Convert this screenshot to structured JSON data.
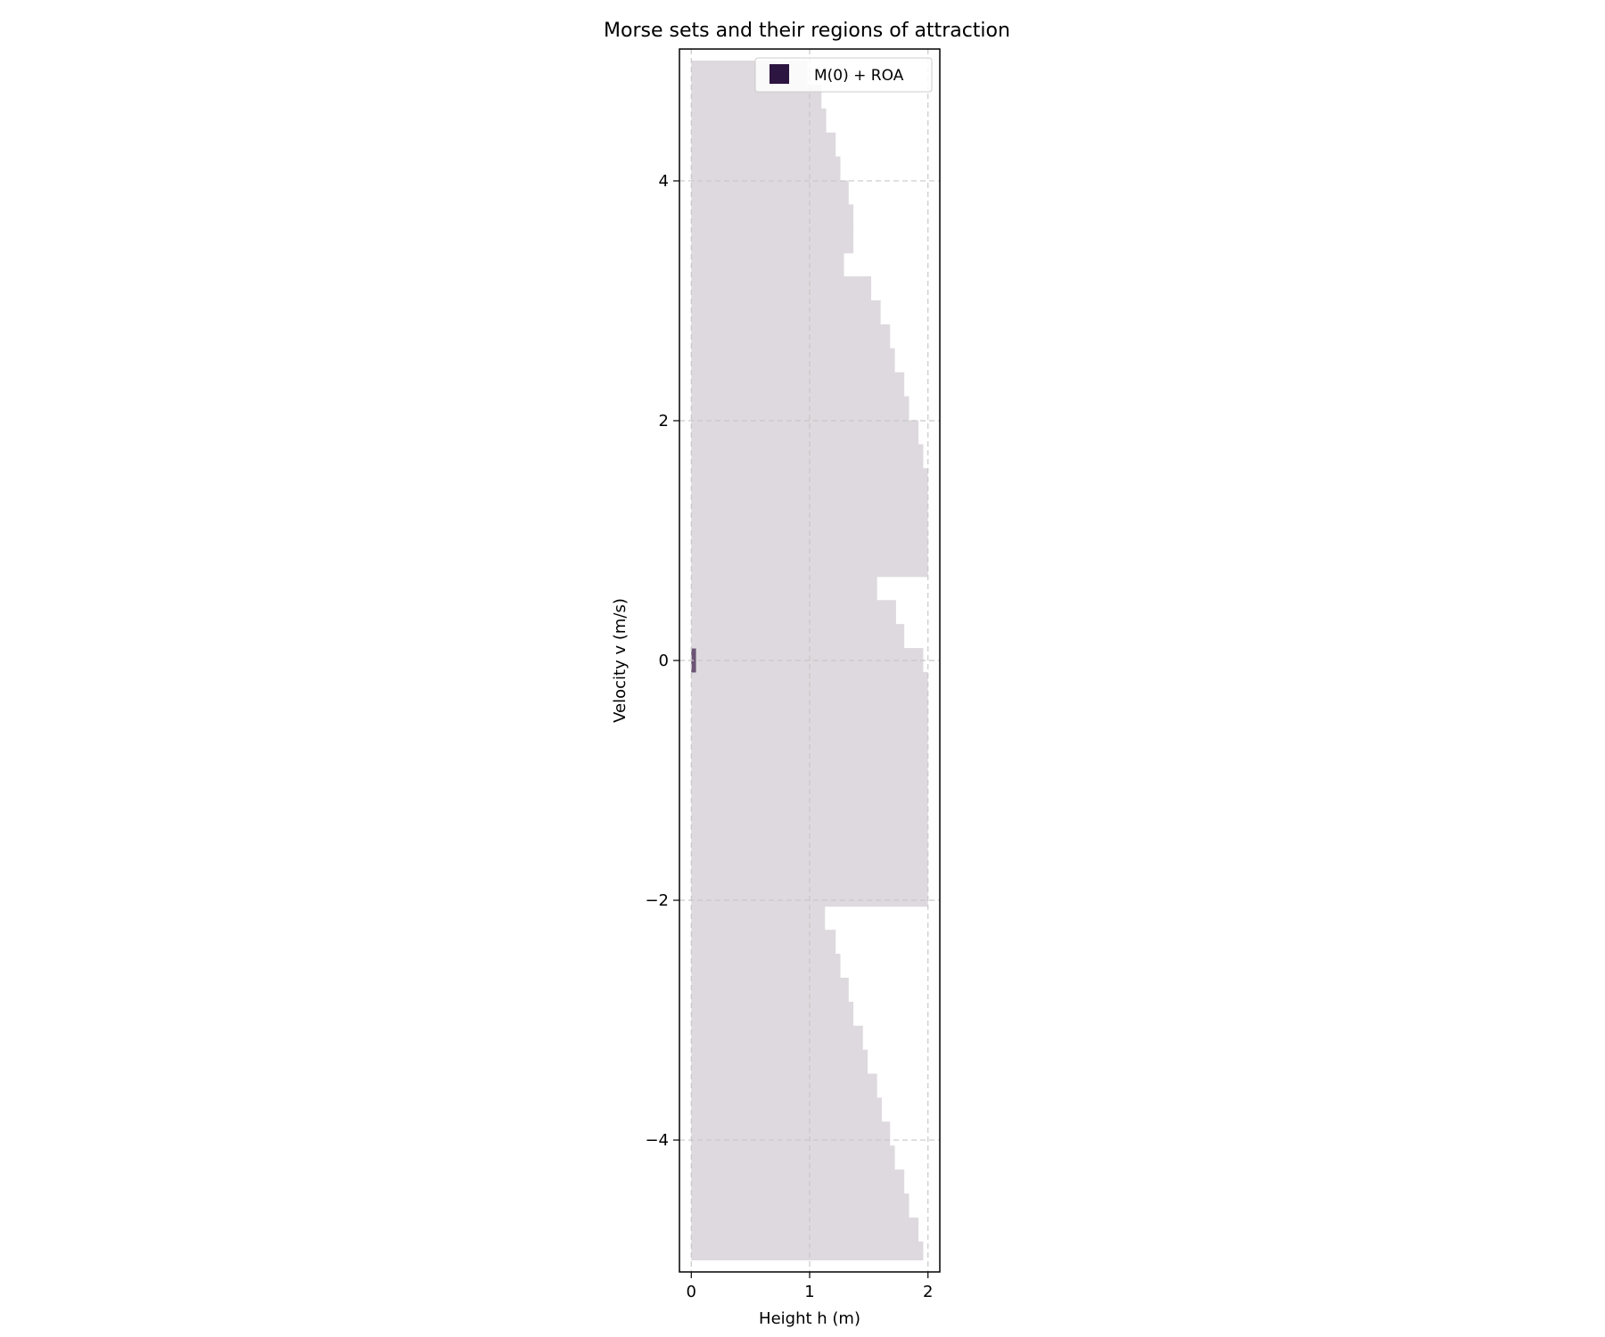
{
  "chart_data": {
    "type": "heatmap",
    "title": "Morse sets and their regions of attraction",
    "xlabel": "Height h (m)",
    "ylabel": "Velocity v (m/s)",
    "xlim": [
      -0.1,
      2.1
    ],
    "ylim": [
      -5.1,
      5.1
    ],
    "xticks": [
      0,
      1,
      2
    ],
    "xtick_labels": [
      "0",
      "1",
      "2"
    ],
    "yticks": [
      -4,
      -2,
      0,
      2,
      4
    ],
    "ytick_labels": [
      "−4",
      "−2",
      "0",
      "2",
      "4"
    ],
    "grid": true,
    "legend": {
      "placement": "top-right",
      "entries": [
        {
          "label": "M(0) + ROA",
          "color": "#2d1541"
        }
      ]
    },
    "colors": {
      "roa": "#ded9de",
      "morse_set": "#6b5475",
      "legend_swatch": "#2d1541",
      "grid": "#c8c8c8"
    },
    "roa_h_min": 0,
    "roa_boundary": [
      {
        "v": [
          4.8,
          5.0
        ],
        "h_max": 0.98
      },
      {
        "v": [
          4.6,
          4.8
        ],
        "h_max": 1.1
      },
      {
        "v": [
          4.4,
          4.6
        ],
        "h_max": 1.14
      },
      {
        "v": [
          4.2,
          4.4
        ],
        "h_max": 1.22
      },
      {
        "v": [
          4.0,
          4.2
        ],
        "h_max": 1.26
      },
      {
        "v": [
          3.8,
          4.0
        ],
        "h_max": 1.33
      },
      {
        "v": [
          3.6,
          3.8
        ],
        "h_max": 1.37
      },
      {
        "v": [
          3.4,
          3.6
        ],
        "h_max": 1.37
      },
      {
        "v": [
          3.2,
          3.4
        ],
        "h_max": 1.29
      },
      {
        "v": [
          3.0,
          3.2
        ],
        "h_max": 1.52
      },
      {
        "v": [
          2.8,
          3.0
        ],
        "h_max": 1.6
      },
      {
        "v": [
          2.6,
          2.8
        ],
        "h_max": 1.68
      },
      {
        "v": [
          2.4,
          2.6
        ],
        "h_max": 1.72
      },
      {
        "v": [
          2.2,
          2.4
        ],
        "h_max": 1.8
      },
      {
        "v": [
          2.0,
          2.2
        ],
        "h_max": 1.84
      },
      {
        "v": [
          1.8,
          2.0
        ],
        "h_max": 1.92
      },
      {
        "v": [
          1.6,
          1.8
        ],
        "h_max": 1.96
      },
      {
        "v": [
          0.7,
          1.6
        ],
        "h_max": 2.0
      },
      {
        "v": [
          0.5,
          0.7
        ],
        "h_max": 1.57
      },
      {
        "v": [
          0.3,
          0.5
        ],
        "h_max": 1.73
      },
      {
        "v": [
          0.1,
          0.3
        ],
        "h_max": 1.8
      },
      {
        "v": [
          -0.1,
          0.1
        ],
        "h_max": 1.96
      },
      {
        "v": [
          -2.05,
          -0.1
        ],
        "h_max": 2.0
      },
      {
        "v": [
          -2.25,
          -2.05
        ],
        "h_max": 1.13
      },
      {
        "v": [
          -2.45,
          -2.25
        ],
        "h_max": 1.22
      },
      {
        "v": [
          -2.65,
          -2.45
        ],
        "h_max": 1.26
      },
      {
        "v": [
          -2.85,
          -2.65
        ],
        "h_max": 1.33
      },
      {
        "v": [
          -3.05,
          -2.85
        ],
        "h_max": 1.37
      },
      {
        "v": [
          -3.25,
          -3.05
        ],
        "h_max": 1.45
      },
      {
        "v": [
          -3.45,
          -3.25
        ],
        "h_max": 1.49
      },
      {
        "v": [
          -3.65,
          -3.45
        ],
        "h_max": 1.57
      },
      {
        "v": [
          -3.85,
          -3.65
        ],
        "h_max": 1.61
      },
      {
        "v": [
          -4.05,
          -3.85
        ],
        "h_max": 1.68
      },
      {
        "v": [
          -4.25,
          -4.05
        ],
        "h_max": 1.72
      },
      {
        "v": [
          -4.45,
          -4.25
        ],
        "h_max": 1.8
      },
      {
        "v": [
          -4.65,
          -4.45
        ],
        "h_max": 1.84
      },
      {
        "v": [
          -4.85,
          -4.65
        ],
        "h_max": 1.92
      },
      {
        "v": [
          -5.0,
          -4.85
        ],
        "h_max": 1.96
      }
    ],
    "morse_set": {
      "h": [
        0.0,
        0.04
      ],
      "v": [
        -0.1,
        0.1
      ]
    }
  }
}
